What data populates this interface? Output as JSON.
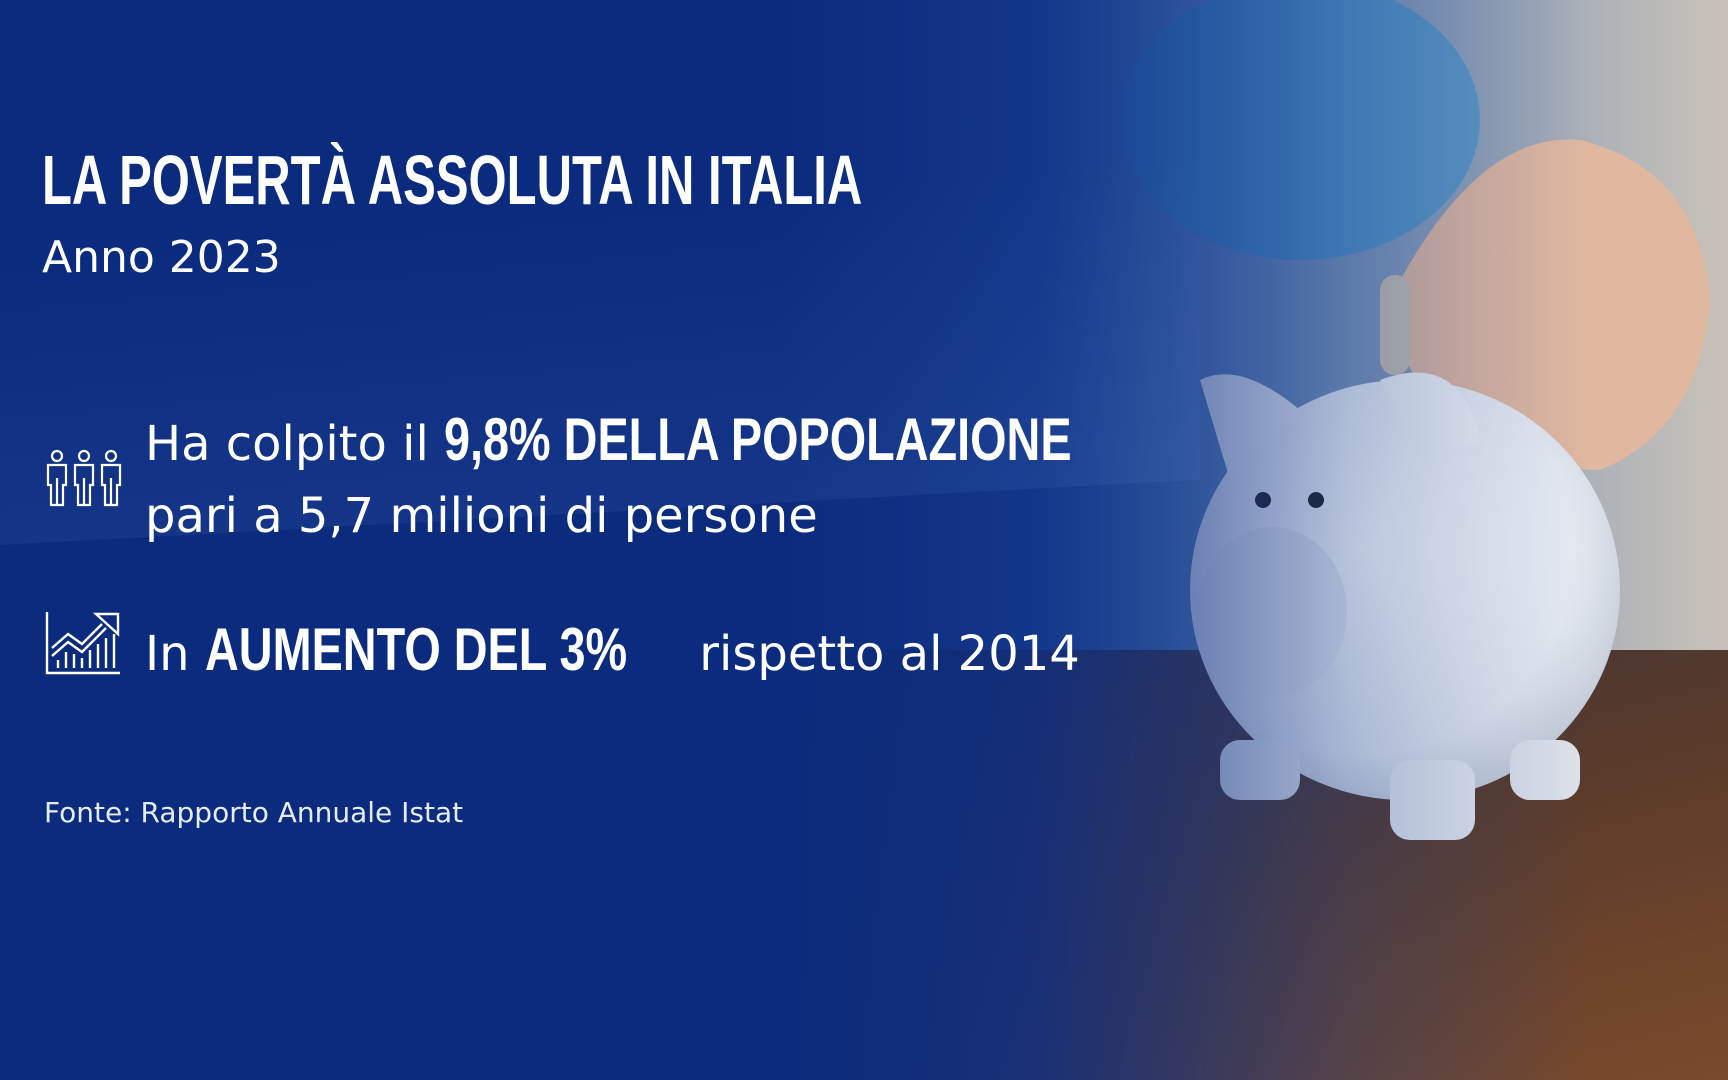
{
  "header": {
    "title": "LA POVERTÀ ASSOLUTA IN ITALIA",
    "subtitle": "Anno 2023"
  },
  "facts": [
    {
      "icon": "people-icon",
      "prefix": "Ha colpito il ",
      "highlight": "9,8% DELLA POPOLAZIONE",
      "line2": "pari a 5,7 milioni di persone"
    },
    {
      "icon": "growth-chart-icon",
      "prefix": "In ",
      "highlight": "AUMENTO DEL 3%",
      "suffix": " rispetto al 2014"
    }
  ],
  "source": "Fonte: Rapporto Annuale Istat",
  "colors": {
    "background": "#0b2b7e",
    "text": "#ffffff"
  }
}
